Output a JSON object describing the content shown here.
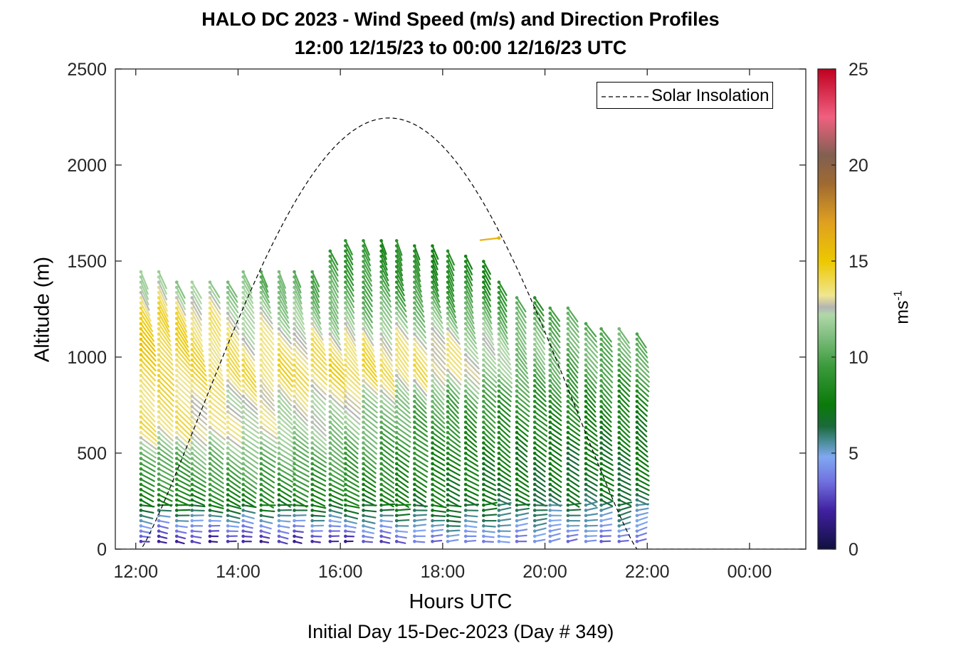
{
  "chart_data": {
    "type": "wind barb profile",
    "title": "HALO DC 2023 - Wind Speed (m/s) and Direction Profiles",
    "subtitle": "12:00 12/15/23 to 00:00 12/16/23  UTC",
    "xlabel": "Hours UTC",
    "xlabel2": "Initial Day 15-Dec-2023 (Day # 349)",
    "ylabel": "Altitude (m)",
    "colorbar_label": "ms",
    "colorbar_label_exp": "-1",
    "x_range_hours": [
      11.6,
      25.1
    ],
    "y_range_m": [
      0,
      2500
    ],
    "x_ticks": [
      {
        "value": 12,
        "label": "12:00"
      },
      {
        "value": 14,
        "label": "14:00"
      },
      {
        "value": 16,
        "label": "16:00"
      },
      {
        "value": 18,
        "label": "18:00"
      },
      {
        "value": 20,
        "label": "20:00"
      },
      {
        "value": 22,
        "label": "22:00"
      },
      {
        "value": 24,
        "label": "00:00"
      }
    ],
    "y_ticks": [
      {
        "value": 0,
        "label": "0"
      },
      {
        "value": 500,
        "label": "500"
      },
      {
        "value": 1000,
        "label": "1000"
      },
      {
        "value": 1500,
        "label": "1500"
      },
      {
        "value": 2000,
        "label": "2000"
      },
      {
        "value": 2500,
        "label": "2500"
      }
    ],
    "colorbar_range": [
      0,
      25
    ],
    "colorbar_ticks": [
      {
        "value": 0,
        "label": "0"
      },
      {
        "value": 5,
        "label": "5"
      },
      {
        "value": 10,
        "label": "10"
      },
      {
        "value": 15,
        "label": "15"
      },
      {
        "value": 20,
        "label": "20"
      },
      {
        "value": 25,
        "label": "25"
      }
    ],
    "colormap_stops": [
      [
        0,
        "#101040"
      ],
      [
        2,
        "#4020a0"
      ],
      [
        3.5,
        "#7070e0"
      ],
      [
        4.8,
        "#80a8f0"
      ],
      [
        5.6,
        "#4a8c98"
      ],
      [
        6.4,
        "#1a6a3a"
      ],
      [
        7.5,
        "#0a7a0a"
      ],
      [
        9.5,
        "#3a9a3a"
      ],
      [
        11,
        "#7cbc7c"
      ],
      [
        12.2,
        "#b0d8a8"
      ],
      [
        12.6,
        "#b4b4b4"
      ],
      [
        13.2,
        "#f0e690"
      ],
      [
        15,
        "#ecc800"
      ],
      [
        17,
        "#e0a020"
      ],
      [
        19,
        "#a06a30"
      ],
      [
        20.5,
        "#806050"
      ],
      [
        22.5,
        "#f06080"
      ],
      [
        25,
        "#c00020"
      ]
    ],
    "legend": [
      {
        "name": "Solar Insolation",
        "style": "dashed black line",
        "placement": "top-right"
      }
    ],
    "solar_insolation": {
      "start_hour": 12.1,
      "peak_hour": 16.9,
      "end_hour": 21.8,
      "peak_altitude_equiv": 2245
    },
    "profile_hours": [
      12.1,
      12.45,
      12.8,
      13.1,
      13.45,
      13.8,
      14.1,
      14.45,
      14.8,
      15.1,
      15.45,
      15.8,
      16.1,
      16.45,
      16.8,
      17.1,
      17.45,
      17.8,
      18.1,
      18.45,
      18.8,
      19.1,
      19.45,
      19.8,
      20.1,
      20.45,
      20.8,
      21.1,
      21.45,
      21.8
    ],
    "profile_top_altitude_m": [
      1460,
      1460,
      1410,
      1400,
      1410,
      1410,
      1460,
      1460,
      1460,
      1460,
      1460,
      1560,
      1610,
      1610,
      1610,
      1610,
      1580,
      1580,
      1560,
      1540,
      1500,
      1400,
      1330,
      1330,
      1260,
      1260,
      1190,
      1160,
      1160,
      1120
    ],
    "anomalous_barb": {
      "hour": 19.1,
      "altitude_m": 1620,
      "speed": 16
    },
    "speed_profile_nodes": {
      "altitude_m": [
        40,
        120,
        220,
        330,
        500,
        650,
        800,
        950,
        1100,
        1250,
        1400,
        1600
      ],
      "at_12h": [
        2,
        4,
        7,
        9,
        10,
        14,
        14,
        14,
        15,
        15,
        12,
        11
      ],
      "at_14h": [
        2,
        4,
        7,
        9,
        11,
        13,
        12.5,
        14,
        13,
        12.5,
        11,
        10
      ],
      "at_16h": [
        2,
        4.5,
        7,
        8.5,
        10,
        11.5,
        12.5,
        14.5,
        13.5,
        11,
        10,
        9
      ],
      "at_18h": [
        4,
        5.5,
        7,
        7.5,
        8,
        9,
        10,
        13.5,
        13,
        11,
        9,
        8
      ],
      "at_20h": [
        4,
        5,
        6,
        7,
        7,
        8,
        9,
        10,
        11,
        10,
        8,
        8
      ],
      "at_22h": [
        3,
        5,
        6,
        7,
        7,
        7.5,
        8,
        10,
        10.5,
        9,
        8,
        8
      ]
    }
  }
}
